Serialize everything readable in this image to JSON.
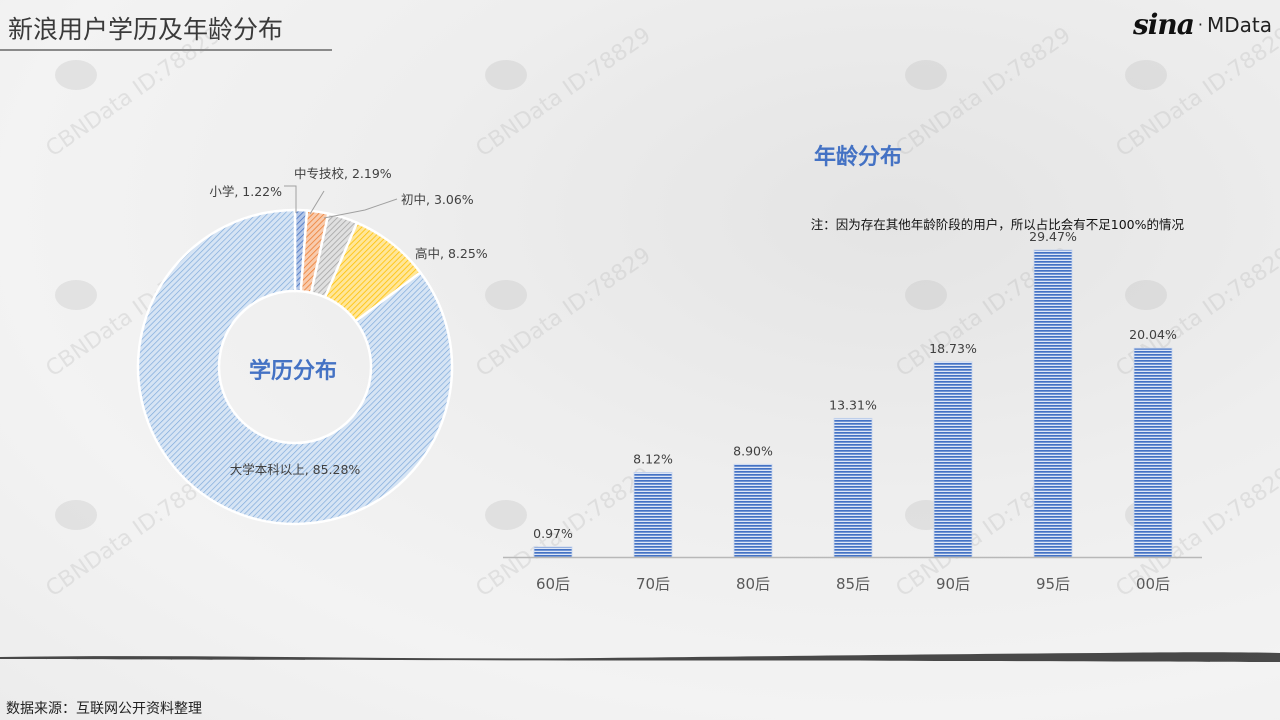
{
  "header": {
    "title": "新浪用户学历及年龄分布",
    "logo_brand": "sina",
    "logo_separator": "·",
    "logo_product": "MData"
  },
  "watermark": {
    "text": "CBNData ID:78829"
  },
  "footer": {
    "source": "数据来源：互联网公开资料整理"
  },
  "chart_data": [
    {
      "type": "pie",
      "variant": "donut",
      "title": "学历分布",
      "categories": [
        "小学",
        "中专技校",
        "初中",
        "高中",
        "大学本科以上"
      ],
      "values": [
        1.22,
        2.19,
        3.06,
        8.25,
        85.28
      ],
      "labels": [
        "小学, 1.22%",
        "中专技校, 2.19%",
        "初中, 3.06%",
        "高中, 8.25%",
        "大学本科以上, 85.28%"
      ],
      "colors": [
        "#4472c4",
        "#ed7d31",
        "#a5a5a5",
        "#ffc000",
        "#5b9bd5"
      ],
      "unit": "%"
    },
    {
      "type": "bar",
      "title": "年龄分布",
      "note": "注：因为存在其他年龄阶段的用户，所以占比会有不足100%的情况",
      "categories": [
        "60后",
        "70后",
        "80后",
        "85后",
        "90后",
        "95后",
        "00后"
      ],
      "values": [
        0.97,
        8.12,
        8.9,
        13.31,
        18.73,
        29.47,
        20.04
      ],
      "labels": [
        "0.97%",
        "8.12%",
        "8.90%",
        "13.31%",
        "18.73%",
        "29.47%",
        "20.04%"
      ],
      "color": "#4472c4",
      "xlabel": "",
      "ylabel": "",
      "ylim": [
        0,
        30
      ],
      "grid": false,
      "legend": "none"
    }
  ]
}
